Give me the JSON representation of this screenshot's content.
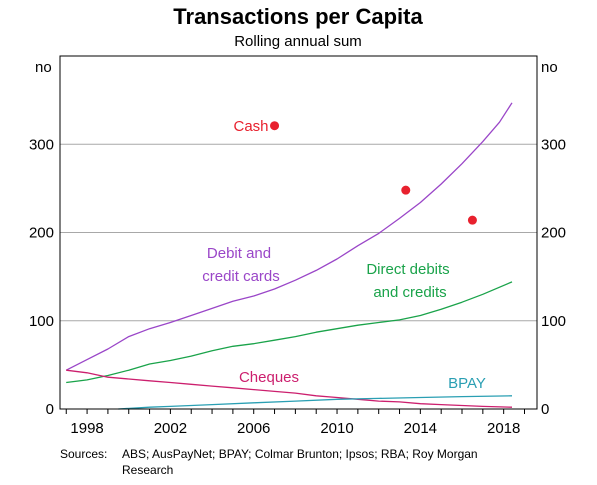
{
  "chart_data": {
    "type": "line",
    "title": "Transactions per Capita",
    "subtitle": "Rolling annual sum",
    "y_unit_left": "no",
    "y_unit_right": "no",
    "xlim": [
      1996.7,
      2019.6
    ],
    "ylim": [
      0,
      400
    ],
    "x_ticks": [
      1998,
      2002,
      2006,
      2010,
      2014,
      2018
    ],
    "y_ticks": [
      0,
      100,
      200,
      300
    ],
    "grid": true,
    "series": [
      {
        "name": "Debit and credit cards",
        "label_lines": [
          "Debit and",
          "credit cards"
        ],
        "color": "#9a46c8",
        "points": [
          [
            1997.0,
            44
          ],
          [
            1998.0,
            56
          ],
          [
            1999.0,
            68
          ],
          [
            2000.0,
            82
          ],
          [
            2001.0,
            91
          ],
          [
            2002.0,
            98
          ],
          [
            2003.0,
            106
          ],
          [
            2004.0,
            114
          ],
          [
            2005.0,
            122
          ],
          [
            2006.0,
            128
          ],
          [
            2007.0,
            136
          ],
          [
            2008.0,
            146
          ],
          [
            2009.0,
            157
          ],
          [
            2010.0,
            170
          ],
          [
            2011.0,
            185
          ],
          [
            2012.0,
            199
          ],
          [
            2013.0,
            216
          ],
          [
            2014.0,
            234
          ],
          [
            2015.0,
            255
          ],
          [
            2016.0,
            278
          ],
          [
            2017.0,
            303
          ],
          [
            2017.8,
            325
          ],
          [
            2018.4,
            347
          ]
        ]
      },
      {
        "name": "Direct debits and credits",
        "label_lines": [
          "Direct debits",
          "and credits"
        ],
        "color": "#1aa34a",
        "points": [
          [
            1997.0,
            30
          ],
          [
            1998.0,
            33
          ],
          [
            1999.0,
            38
          ],
          [
            2000.0,
            44
          ],
          [
            2001.0,
            51
          ],
          [
            2002.0,
            55
          ],
          [
            2003.0,
            60
          ],
          [
            2004.0,
            66
          ],
          [
            2005.0,
            71
          ],
          [
            2006.0,
            74
          ],
          [
            2007.0,
            78
          ],
          [
            2008.0,
            82
          ],
          [
            2009.0,
            87
          ],
          [
            2010.0,
            91
          ],
          [
            2011.0,
            95
          ],
          [
            2012.0,
            98
          ],
          [
            2013.0,
            101
          ],
          [
            2014.0,
            106
          ],
          [
            2015.0,
            113
          ],
          [
            2016.0,
            121
          ],
          [
            2017.0,
            130
          ],
          [
            2018.4,
            144
          ]
        ]
      },
      {
        "name": "Cheques",
        "label_lines": [
          "Cheques"
        ],
        "color": "#cc1f6e",
        "points": [
          [
            1997.0,
            44
          ],
          [
            1998.0,
            41
          ],
          [
            1999.0,
            36
          ],
          [
            2000.0,
            34
          ],
          [
            2001.0,
            32
          ],
          [
            2002.0,
            30
          ],
          [
            2003.0,
            28
          ],
          [
            2004.0,
            26
          ],
          [
            2005.0,
            24
          ],
          [
            2006.0,
            22
          ],
          [
            2007.0,
            20
          ],
          [
            2008.0,
            18
          ],
          [
            2009.0,
            15
          ],
          [
            2010.0,
            13
          ],
          [
            2011.0,
            11
          ],
          [
            2012.0,
            9
          ],
          [
            2013.0,
            8
          ],
          [
            2014.0,
            6
          ],
          [
            2015.0,
            5
          ],
          [
            2016.0,
            4
          ],
          [
            2017.0,
            3
          ],
          [
            2018.4,
            2
          ]
        ]
      },
      {
        "name": "BPAY",
        "label_lines": [
          "BPAY"
        ],
        "color": "#2a9fb3",
        "points": [
          [
            1999.5,
            0
          ],
          [
            2001.0,
            2
          ],
          [
            2002.0,
            3
          ],
          [
            2004.0,
            5
          ],
          [
            2006.0,
            7
          ],
          [
            2008.0,
            9
          ],
          [
            2010.0,
            11
          ],
          [
            2012.0,
            12
          ],
          [
            2014.0,
            13
          ],
          [
            2016.0,
            14
          ],
          [
            2018.4,
            15
          ]
        ]
      }
    ],
    "scatter": [
      {
        "name": "Cash",
        "label_lines": [
          "Cash"
        ],
        "color": "#e8212e",
        "points": [
          [
            2007.0,
            321
          ],
          [
            2013.3,
            248
          ],
          [
            2016.5,
            214
          ]
        ]
      }
    ]
  },
  "footer": {
    "sources_label": "Sources:",
    "sources_text": "ABS; AusPayNet; BPAY; Colmar Brunton; Ipsos; RBA; Roy Morgan Research"
  }
}
